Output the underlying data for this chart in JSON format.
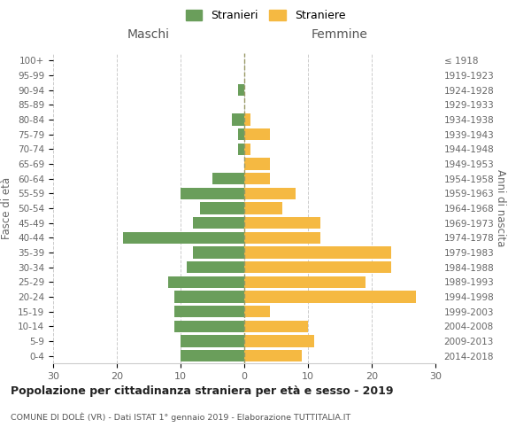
{
  "age_groups": [
    "0-4",
    "5-9",
    "10-14",
    "15-19",
    "20-24",
    "25-29",
    "30-34",
    "35-39",
    "40-44",
    "45-49",
    "50-54",
    "55-59",
    "60-64",
    "65-69",
    "70-74",
    "75-79",
    "80-84",
    "85-89",
    "90-94",
    "95-99",
    "100+"
  ],
  "birth_years": [
    "2014-2018",
    "2009-2013",
    "2004-2008",
    "1999-2003",
    "1994-1998",
    "1989-1993",
    "1984-1988",
    "1979-1983",
    "1974-1978",
    "1969-1973",
    "1964-1968",
    "1959-1963",
    "1954-1958",
    "1949-1953",
    "1944-1948",
    "1939-1943",
    "1934-1938",
    "1929-1933",
    "1924-1928",
    "1919-1923",
    "≤ 1918"
  ],
  "maschi": [
    10,
    10,
    11,
    11,
    11,
    12,
    9,
    8,
    19,
    8,
    7,
    10,
    5,
    0,
    1,
    1,
    2,
    0,
    1,
    0,
    0
  ],
  "femmine": [
    9,
    11,
    10,
    4,
    27,
    19,
    23,
    23,
    12,
    12,
    6,
    8,
    4,
    4,
    1,
    4,
    1,
    0,
    0,
    0,
    0
  ],
  "maschi_color": "#6a9e5b",
  "femmine_color": "#f5b942",
  "background_color": "#ffffff",
  "grid_color": "#cccccc",
  "title": "Popolazione per cittadinanza straniera per età e sesso - 2019",
  "subtitle": "COMUNE DI DOL CÈ (VR) - Dati ISTAT 1° gennaio 2019 - Elaborazione TUTTITALIA.IT",
  "xlabel_left": "Maschi",
  "xlabel_right": "Femmine",
  "ylabel_left": "Fasce di età",
  "ylabel_right": "Anni di nascita",
  "legend_stranieri": "Stranieri",
  "legend_straniere": "Straniere",
  "xlim": 30,
  "bar_height": 0.8
}
